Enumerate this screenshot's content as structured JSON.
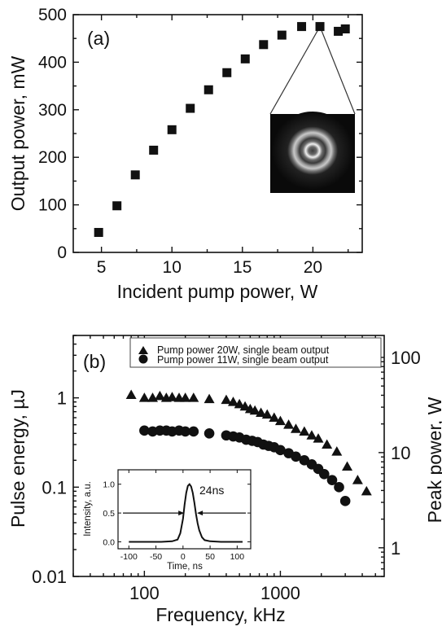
{
  "chart_data": [
    {
      "type": "scatter",
      "panel_label": "(a)",
      "xlabel": "Incident pump power, W",
      "ylabel": "Output power, mW",
      "xlim": [
        3,
        23.5
      ],
      "ylim": [
        0,
        500
      ],
      "xticks": [
        "5",
        "10",
        "15",
        "20"
      ],
      "yticks": [
        "0",
        "100",
        "200",
        "300",
        "400",
        "500"
      ],
      "marker": "square",
      "series": [
        {
          "x": [
            4.8,
            6.1,
            7.4,
            8.7,
            10.0,
            11.3,
            12.6,
            13.9,
            15.2,
            16.5,
            17.8,
            19.2,
            20.5,
            21.8,
            22.3
          ],
          "y": [
            42,
            98,
            163,
            215,
            258,
            303,
            342,
            378,
            407,
            437,
            457,
            475,
            475,
            465,
            470
          ]
        }
      ],
      "inset": {
        "type": "image",
        "description": "beam profile",
        "attached_point_x": 20.5
      }
    },
    {
      "type": "scatter",
      "panel_label": "(b)",
      "xlabel": "Frequency, kHz",
      "ylabel": "Pulse energy, µJ",
      "y2label": "Peak power, W",
      "xscale": "log",
      "yscale": "log",
      "xlim": [
        30,
        5800
      ],
      "ylim": [
        0.01,
        5
      ],
      "y2lim": [
        0.5,
        170
      ],
      "xticks": [
        "100",
        "1000"
      ],
      "yticks": [
        "0.01",
        "0.1",
        "1"
      ],
      "y2ticks": [
        "1",
        "10",
        "100"
      ],
      "legend_position": "top",
      "series": [
        {
          "name": "Pump power 20W, single beam output",
          "marker": "triangle",
          "x": [
            80,
            100,
            115,
            130,
            145,
            160,
            180,
            200,
            230,
            300,
            400,
            450,
            500,
            550,
            600,
            650,
            720,
            800,
            900,
            1000,
            1150,
            1300,
            1500,
            1700,
            1900,
            2200,
            2600,
            3100,
            3700,
            4300
          ],
          "y": [
            1.08,
            1.0,
            1.0,
            1.05,
            1.0,
            1.02,
            1.0,
            1.0,
            1.0,
            0.97,
            0.95,
            0.9,
            0.85,
            0.8,
            0.75,
            0.72,
            0.68,
            0.65,
            0.6,
            0.55,
            0.5,
            0.45,
            0.42,
            0.38,
            0.35,
            0.3,
            0.25,
            0.17,
            0.12,
            0.09
          ]
        },
        {
          "name": "Pump power 11W, single beam output",
          "marker": "circle",
          "x": [
            100,
            115,
            130,
            145,
            160,
            180,
            200,
            230,
            300,
            400,
            450,
            500,
            560,
            620,
            680,
            750,
            820,
            900,
            1000,
            1150,
            1300,
            1500,
            1700,
            1900,
            2100,
            2400,
            2700,
            3000
          ],
          "y": [
            0.43,
            0.42,
            0.43,
            0.43,
            0.42,
            0.43,
            0.42,
            0.42,
            0.4,
            0.38,
            0.37,
            0.36,
            0.34,
            0.33,
            0.32,
            0.3,
            0.29,
            0.28,
            0.26,
            0.24,
            0.22,
            0.2,
            0.18,
            0.16,
            0.14,
            0.12,
            0.1,
            0.07
          ]
        }
      ],
      "inset": {
        "type": "line",
        "xlabel": "Time, ns",
        "ylabel": "Intensity, a.u.",
        "xlim": [
          -120,
          125
        ],
        "ylim": [
          -0.12,
          1.25
        ],
        "xticks": [
          "-100",
          "-50",
          "0",
          "50",
          "100"
        ],
        "yticks": [
          "0.0",
          "0.5",
          "1.0"
        ],
        "annotation": "24ns",
        "series": [
          {
            "x": [
              -100,
              -70,
              -40,
              -20,
              -10,
              -5,
              0,
              3,
              6,
              9,
              12,
              15,
              18,
              21,
              24,
              27,
              30,
              35,
              40,
              50,
              70,
              110
            ],
            "y": [
              0,
              0,
              0,
              0.01,
              0.04,
              0.15,
              0.4,
              0.65,
              0.85,
              0.97,
              1.0,
              0.96,
              0.85,
              0.68,
              0.48,
              0.32,
              0.2,
              0.08,
              0.03,
              0.01,
              0,
              0
            ]
          }
        ]
      }
    }
  ]
}
